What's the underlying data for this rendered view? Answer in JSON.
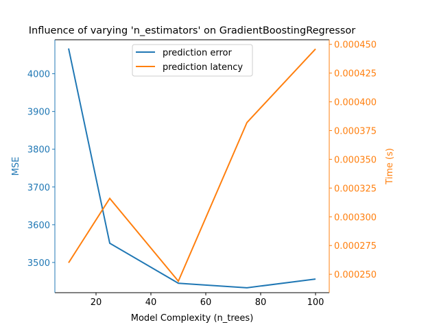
{
  "chart_data": {
    "type": "line",
    "title": "Influence of varying 'n_estimators' on GradientBoostingRegressor",
    "xlabel": "Model Complexity (n_trees)",
    "ylabel": "MSE",
    "ylabel_right": "Time (s)",
    "x": [
      10,
      25,
      50,
      75,
      100
    ],
    "xlim": [
      5,
      105
    ],
    "ylim": [
      3420,
      4090
    ],
    "ylim_right": [
      0.000234,
      0.000454
    ],
    "x_ticks": [
      20,
      40,
      60,
      80,
      100
    ],
    "y_ticks": [
      3500,
      3600,
      3700,
      3800,
      3900,
      4000
    ],
    "y_ticks_right": [
      "0.000250",
      "0.000275",
      "0.000300",
      "0.000325",
      "0.000350",
      "0.000375",
      "0.000400",
      "0.000425",
      "0.000450"
    ],
    "grid": false,
    "legend_position": "upper center",
    "series": [
      {
        "name": "prediction error",
        "axis": "left",
        "color": "#1f77b4",
        "values": [
          4067,
          3551,
          3445,
          3433,
          3456
        ]
      },
      {
        "name": "prediction latency",
        "axis": "right",
        "color": "#ff7f0e",
        "values": [
          0.00026,
          0.000316,
          0.000244,
          0.000382,
          0.000446
        ]
      }
    ]
  },
  "colors": {
    "left_axis": "#1f77b4",
    "right_axis": "#ff7f0e",
    "text": "#000000"
  }
}
